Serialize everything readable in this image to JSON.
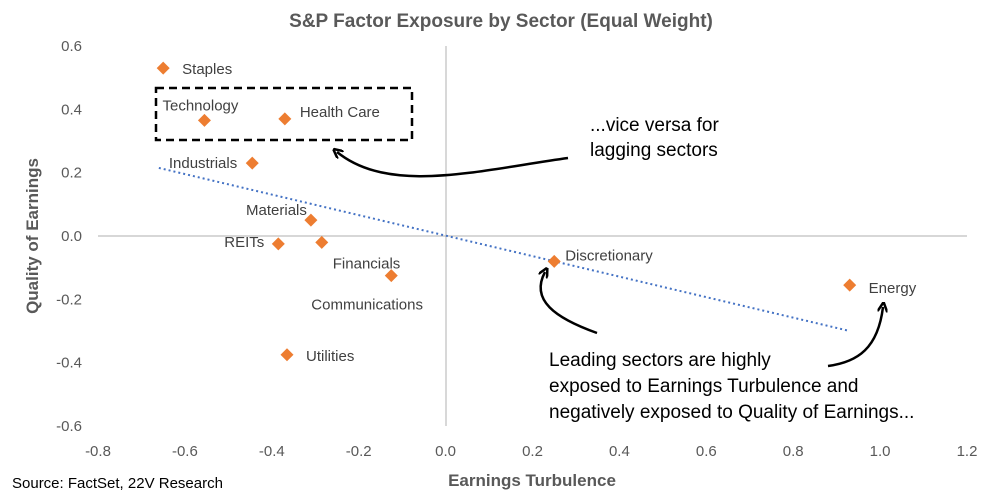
{
  "chart_data": {
    "type": "scatter",
    "title": "S&P Factor Exposure by Sector (Equal Weight)",
    "xlabel": "Earnings Turbulence",
    "ylabel": "Quality of Earnings",
    "xlim": [
      -0.8,
      1.2
    ],
    "ylim": [
      -0.6,
      0.6
    ],
    "x_ticks": [
      -0.8,
      -0.6,
      -0.4,
      -0.2,
      0.0,
      0.2,
      0.4,
      0.6,
      0.8,
      1.0,
      1.2
    ],
    "y_ticks": [
      -0.6,
      -0.4,
      -0.2,
      0.0,
      0.2,
      0.4,
      0.6
    ],
    "x_tick_labels": [
      "-0.8",
      "-0.6",
      "-0.4",
      "-0.2",
      "0.0",
      "0.2",
      "0.4",
      "0.6",
      "0.8",
      "1.0",
      "1.2"
    ],
    "y_tick_labels": [
      "-0.6",
      "-0.4",
      "-0.2",
      "0.0",
      "0.2",
      "0.4",
      "0.6"
    ],
    "grid": false,
    "marker_color": "#ED7D31",
    "trendline_color": "#4472C4",
    "points": [
      {
        "label": "Staples",
        "x": -0.65,
        "y": 0.53
      },
      {
        "label": "Technology",
        "x": -0.555,
        "y": 0.365
      },
      {
        "label": "Health Care",
        "x": -0.37,
        "y": 0.37
      },
      {
        "label": "Industrials",
        "x": -0.445,
        "y": 0.23
      },
      {
        "label": "Materials",
        "x": -0.31,
        "y": 0.05
      },
      {
        "label": "REITs",
        "x": -0.385,
        "y": -0.025
      },
      {
        "label": "Financials",
        "x": -0.285,
        "y": -0.02
      },
      {
        "label": "Communications",
        "x": -0.125,
        "y": -0.125
      },
      {
        "label": "Utilities",
        "x": -0.365,
        "y": -0.375
      },
      {
        "label": "Discretionary",
        "x": 0.25,
        "y": -0.08
      },
      {
        "label": "Energy",
        "x": 0.93,
        "y": -0.155
      }
    ],
    "trendline": {
      "x": [
        -0.66,
        0.93
      ],
      "y": [
        0.215,
        -0.3
      ]
    },
    "annotations": [
      "...vice versa for",
      "lagging sectors",
      "Leading sectors are highly",
      "exposed to Earnings Turbulence and",
      "negatively exposed to Quality of Earnings..."
    ],
    "source": "Source: FactSet, 22V Research"
  }
}
